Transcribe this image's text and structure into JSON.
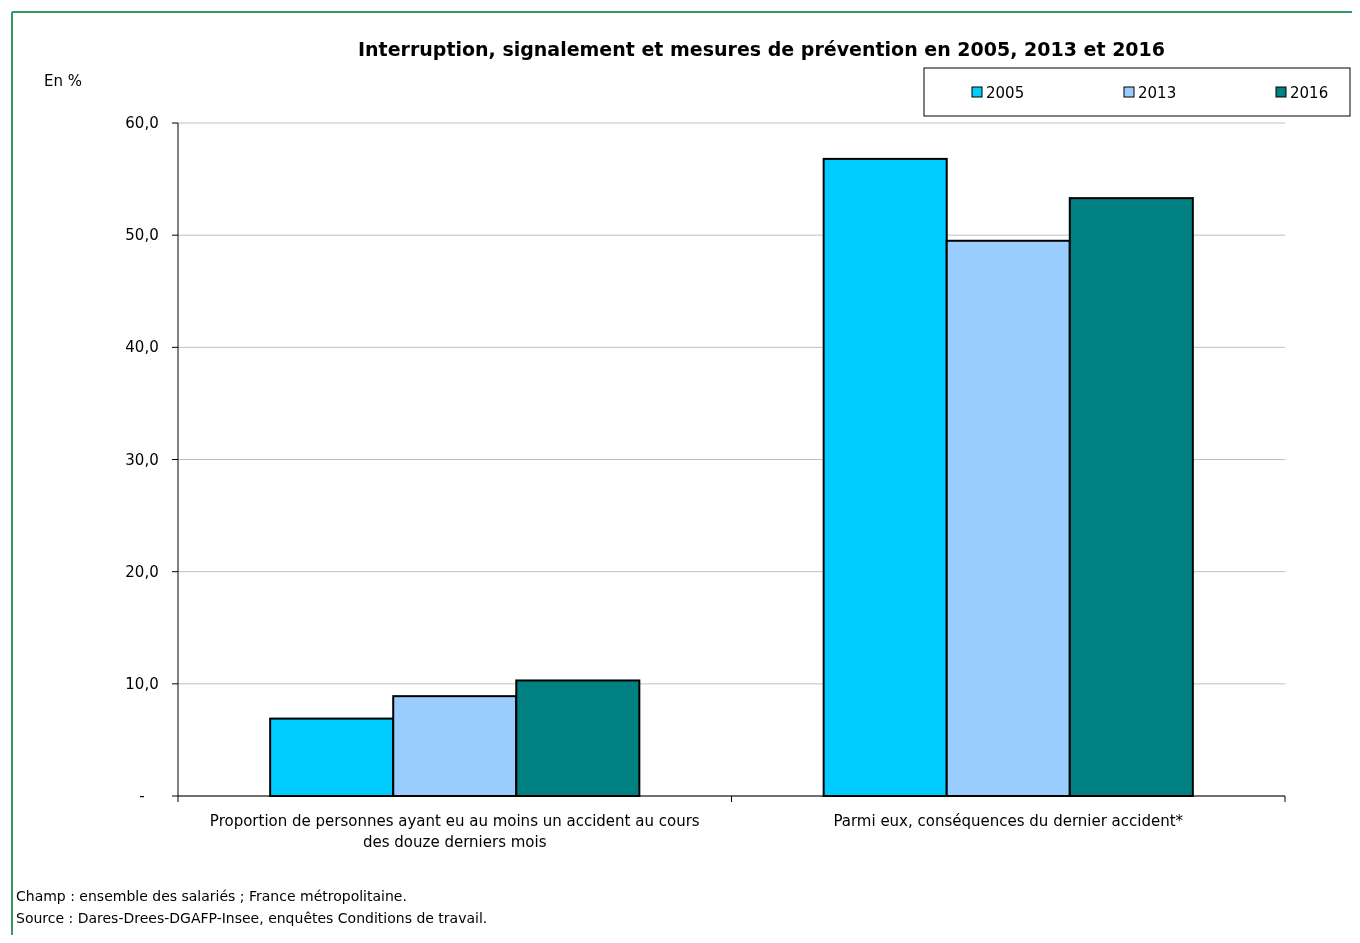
{
  "chart_data": {
    "type": "bar",
    "title": "Interruption, signalement et mesures de prévention en 2005, 2013 et 2016",
    "ylabel": "En %",
    "categories": [
      "Proportion de personnes ayant eu au moins un accident au cours des douze derniers mois",
      "Parmi eux, conséquences du dernier accident*"
    ],
    "series": [
      {
        "name": "2005",
        "color": "#00ccff",
        "values": [
          6.9,
          56.8
        ]
      },
      {
        "name": "2013",
        "color": "#99ccff",
        "values": [
          8.9,
          49.5
        ]
      },
      {
        "name": "2016",
        "color": "#008080",
        "values": [
          10.3,
          53.3
        ]
      }
    ],
    "ylim": [
      0,
      60
    ],
    "yticks": [
      {
        "value": 0,
        "label": "-"
      },
      {
        "value": 10,
        "label": "10,0"
      },
      {
        "value": 20,
        "label": "20,0"
      },
      {
        "value": 30,
        "label": "30,0"
      },
      {
        "value": 40,
        "label": "40,0"
      },
      {
        "value": 50,
        "label": "50,0"
      },
      {
        "value": 60,
        "label": "60,0"
      }
    ],
    "grid": "y",
    "legend": "top right",
    "annotations": [
      "Champ : ensemble des salariés ; France métropolitaine.",
      "Source : Dares-Drees-DGAFP-Insee, enquêtes Conditions de travail."
    ]
  }
}
